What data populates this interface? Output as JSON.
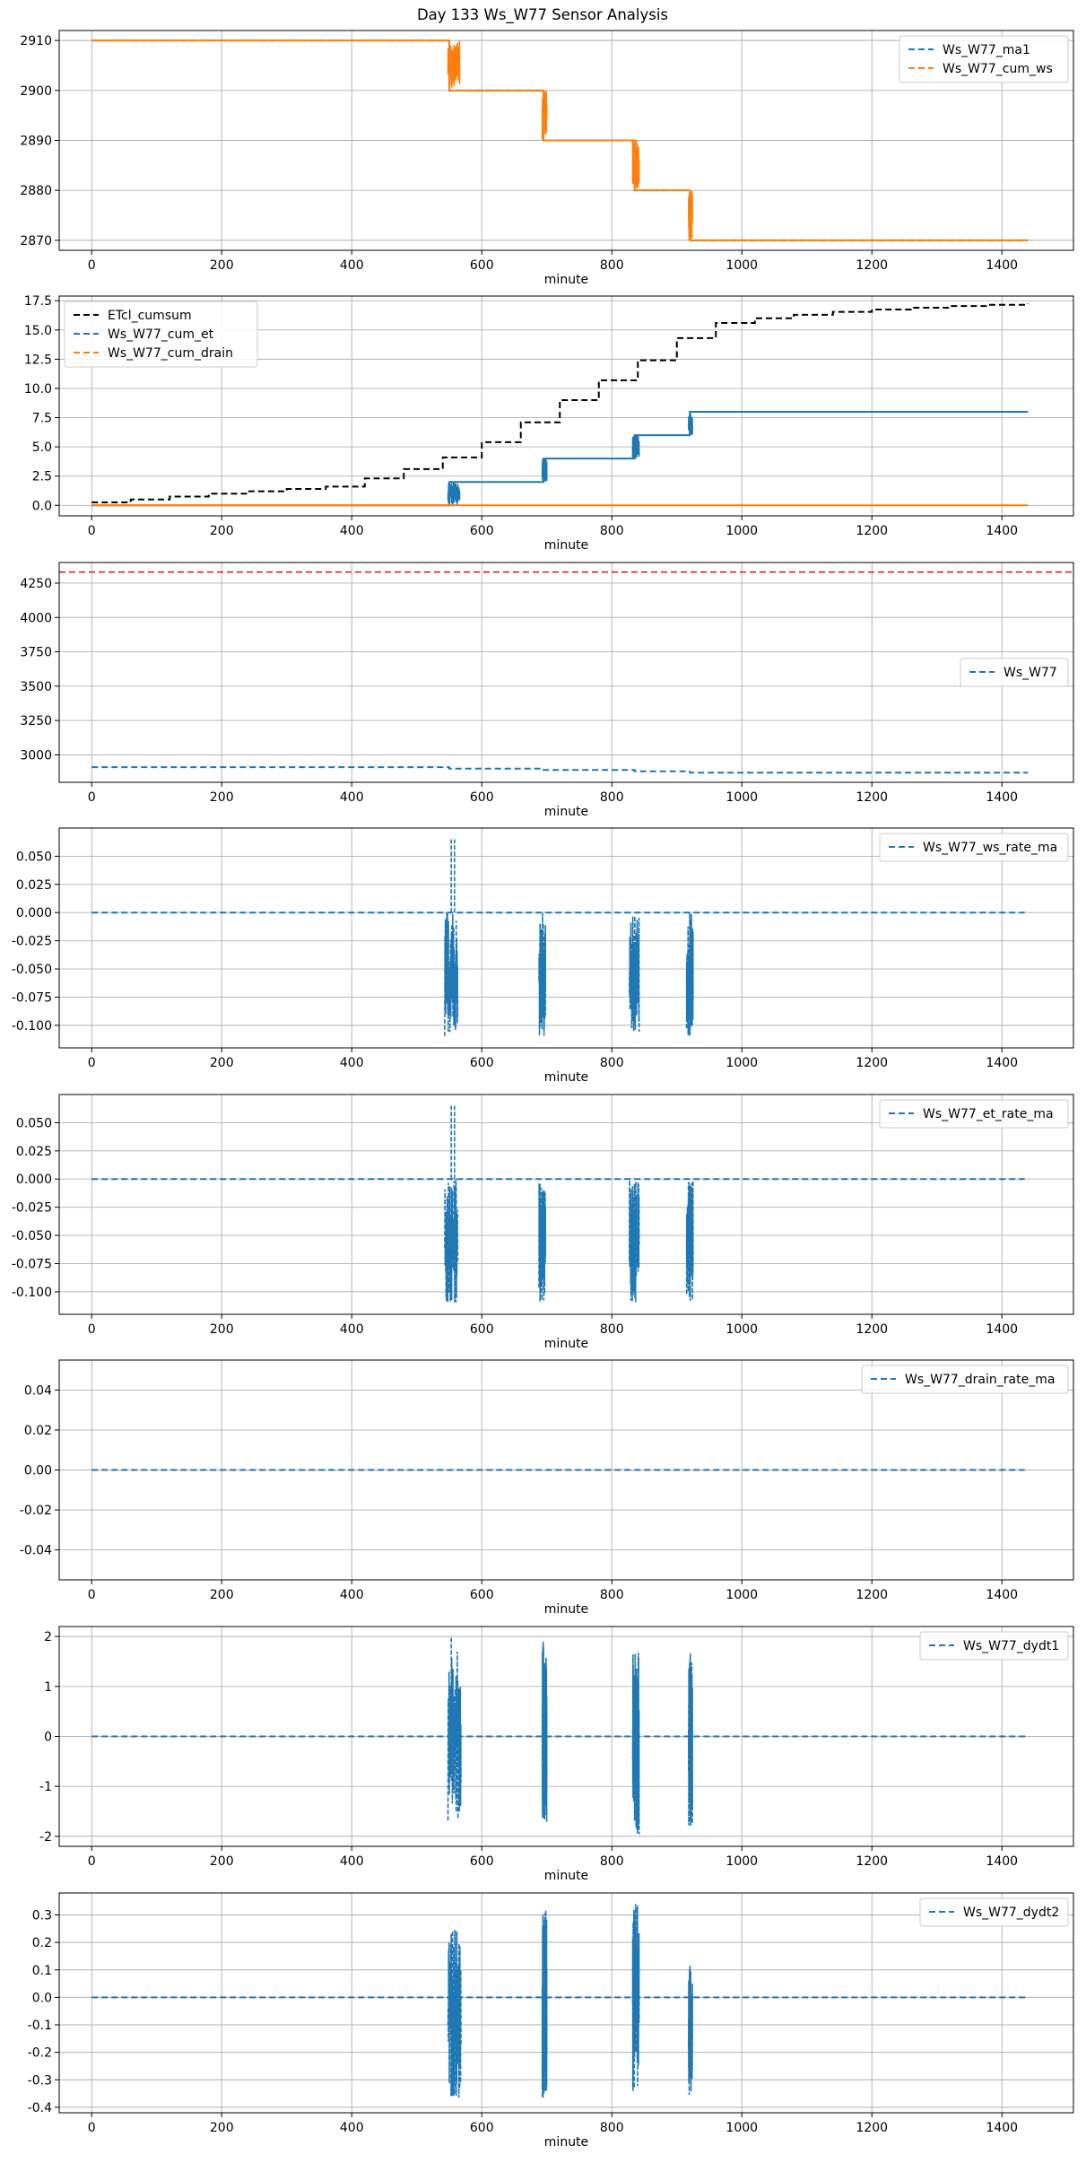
{
  "title": "Day 133 Ws_W77 Sensor Analysis",
  "colors": {
    "blue": "#1f77b4",
    "orange": "#ff7f0e",
    "black": "#000000",
    "red": "#d62728",
    "grid": "#b0b0b0"
  },
  "chart_data": [
    {
      "type": "line",
      "xlabel": "minute",
      "xlim": [
        -50,
        1510
      ],
      "ylim": [
        2868,
        2912
      ],
      "xticks": [
        0,
        200,
        400,
        600,
        800,
        1000,
        1200,
        1400
      ],
      "yticks": [
        2870,
        2880,
        2890,
        2900,
        2910
      ],
      "yticklabels": [
        "2870",
        "2880",
        "2890",
        "2900",
        "2910"
      ],
      "grid": true,
      "legend": "top-right",
      "series": [
        {
          "name": "Ws_W77_ma1",
          "color": "#1f77b4",
          "style": "dashed",
          "x": [
            0,
            550,
            550,
            695,
            695,
            835,
            835,
            920,
            920,
            1440
          ],
          "y": [
            2910,
            2910,
            2900,
            2900,
            2890,
            2890,
            2880,
            2880,
            2870,
            2870
          ]
        },
        {
          "name": "Ws_W77_cum_ws",
          "color": "#ff7f0e",
          "style": "solid",
          "x": [
            0,
            550,
            550,
            695,
            695,
            835,
            835,
            920,
            920,
            1440
          ],
          "y": [
            2910,
            2910,
            2900,
            2900,
            2890,
            2890,
            2880,
            2880,
            2870,
            2870
          ],
          "noise": [
            {
              "x0": 548,
              "x1": 566,
              "ymin": 2900,
              "ymax": 2910
            },
            {
              "x0": 693,
              "x1": 700,
              "ymin": 2890,
              "ymax": 2900
            },
            {
              "x0": 832,
              "x1": 842,
              "ymin": 2880,
              "ymax": 2890
            },
            {
              "x0": 918,
              "x1": 924,
              "ymin": 2870,
              "ymax": 2880
            }
          ]
        }
      ]
    },
    {
      "type": "line",
      "xlabel": "minute",
      "xlim": [
        -50,
        1510
      ],
      "ylim": [
        -0.9,
        17.9
      ],
      "xticks": [
        0,
        200,
        400,
        600,
        800,
        1000,
        1200,
        1400
      ],
      "yticks": [
        0,
        2.5,
        5,
        7.5,
        10,
        12.5,
        15,
        17.5
      ],
      "yticklabels": [
        "0.0",
        "2.5",
        "5.0",
        "7.5",
        "10.0",
        "12.5",
        "15.0",
        "17.5"
      ],
      "grid": true,
      "legend": "top-left",
      "series": [
        {
          "name": "ETcl_cumsum",
          "color": "#000000",
          "style": "dashed",
          "step": true,
          "x": [
            0,
            60,
            120,
            180,
            240,
            300,
            360,
            420,
            480,
            540,
            600,
            660,
            720,
            780,
            840,
            900,
            960,
            1020,
            1080,
            1140,
            1200,
            1260,
            1320,
            1380,
            1440
          ],
          "y": [
            0.25,
            0.5,
            0.75,
            1.0,
            1.2,
            1.4,
            1.6,
            2.3,
            3.1,
            4.1,
            5.4,
            7.1,
            9.0,
            10.7,
            12.4,
            14.3,
            15.6,
            16.0,
            16.3,
            16.55,
            16.75,
            16.9,
            17.05,
            17.15,
            17.25
          ]
        },
        {
          "name": "Ws_W77_cum_et",
          "color": "#1f77b4",
          "style": "solid",
          "x": [
            0,
            550,
            550,
            695,
            695,
            835,
            835,
            920,
            920,
            1440
          ],
          "y": [
            0,
            0,
            2,
            2,
            4,
            4,
            6,
            6,
            8,
            8
          ],
          "noise": [
            {
              "x0": 548,
              "x1": 566,
              "ymin": 0,
              "ymax": 2
            },
            {
              "x0": 693,
              "x1": 700,
              "ymin": 2,
              "ymax": 4
            },
            {
              "x0": 832,
              "x1": 842,
              "ymin": 4,
              "ymax": 6
            },
            {
              "x0": 918,
              "x1": 924,
              "ymin": 6,
              "ymax": 8
            }
          ]
        },
        {
          "name": "Ws_W77_cum_drain",
          "color": "#ff7f0e",
          "style": "solid",
          "x": [
            0,
            1440
          ],
          "y": [
            0,
            0
          ]
        }
      ]
    },
    {
      "type": "line",
      "xlabel": "minute",
      "xlim": [
        -50,
        1510
      ],
      "ylim": [
        2800,
        4400
      ],
      "xticks": [
        0,
        200,
        400,
        600,
        800,
        1000,
        1200,
        1400
      ],
      "yticks": [
        3000,
        3250,
        3500,
        3750,
        4000,
        4250
      ],
      "yticklabels": [
        "3000",
        "3250",
        "3500",
        "3750",
        "4000",
        "4250"
      ],
      "grid": true,
      "legend": "center-right",
      "hline": {
        "y": 4330,
        "color": "#d62728",
        "style": "dashed"
      },
      "series": [
        {
          "name": "Ws_W77",
          "color": "#1f77b4",
          "style": "dashed",
          "x": [
            0,
            550,
            550,
            695,
            695,
            835,
            835,
            920,
            920,
            1440
          ],
          "y": [
            2910,
            2910,
            2900,
            2900,
            2890,
            2890,
            2880,
            2880,
            2870,
            2870
          ]
        }
      ]
    },
    {
      "type": "line",
      "xlabel": "minute",
      "xlim": [
        -50,
        1510
      ],
      "ylim": [
        -0.12,
        0.075
      ],
      "xticks": [
        0,
        200,
        400,
        600,
        800,
        1000,
        1200,
        1400
      ],
      "yticks": [
        -0.1,
        -0.075,
        -0.05,
        -0.025,
        0,
        0.025,
        0.05
      ],
      "yticklabels": [
        "-0.100",
        "-0.075",
        "-0.050",
        "-0.025",
        "0.000",
        "0.025",
        "0.050"
      ],
      "grid": true,
      "legend": "top-right",
      "series": [
        {
          "name": "Ws_W77_ws_rate_ma",
          "color": "#1f77b4",
          "style": "dashed",
          "x": [
            0,
            1435
          ],
          "y": [
            0,
            0
          ],
          "noise": [
            {
              "x0": 543,
              "x1": 563,
              "ymin": -0.11,
              "ymax": 0,
              "spikes": [
                {
                  "x": 553,
                  "y": 0.065
                },
                {
                  "x": 558,
                  "y": 0.065
                }
              ]
            },
            {
              "x0": 688,
              "x1": 698,
              "ymin": -0.11,
              "ymax": 0
            },
            {
              "x0": 827,
              "x1": 842,
              "ymin": -0.11,
              "ymax": 0
            },
            {
              "x0": 915,
              "x1": 925,
              "ymin": -0.11,
              "ymax": 0
            }
          ]
        }
      ]
    },
    {
      "type": "line",
      "xlabel": "minute",
      "xlim": [
        -50,
        1510
      ],
      "ylim": [
        -0.12,
        0.075
      ],
      "xticks": [
        0,
        200,
        400,
        600,
        800,
        1000,
        1200,
        1400
      ],
      "yticks": [
        -0.1,
        -0.075,
        -0.05,
        -0.025,
        0,
        0.025,
        0.05
      ],
      "yticklabels": [
        "-0.100",
        "-0.075",
        "-0.050",
        "-0.025",
        "0.000",
        "0.025",
        "0.050"
      ],
      "grid": true,
      "legend": "top-right",
      "series": [
        {
          "name": "Ws_W77_et_rate_ma",
          "color": "#1f77b4",
          "style": "dashed",
          "x": [
            0,
            1435
          ],
          "y": [
            0,
            0
          ],
          "noise": [
            {
              "x0": 543,
              "x1": 563,
              "ymin": -0.11,
              "ymax": 0,
              "spikes": [
                {
                  "x": 553,
                  "y": 0.065
                },
                {
                  "x": 558,
                  "y": 0.065
                }
              ]
            },
            {
              "x0": 688,
              "x1": 698,
              "ymin": -0.11,
              "ymax": 0
            },
            {
              "x0": 827,
              "x1": 842,
              "ymin": -0.11,
              "ymax": 0
            },
            {
              "x0": 915,
              "x1": 925,
              "ymin": -0.11,
              "ymax": 0
            }
          ]
        }
      ]
    },
    {
      "type": "line",
      "xlabel": "minute",
      "xlim": [
        -50,
        1510
      ],
      "ylim": [
        -0.055,
        0.055
      ],
      "xticks": [
        0,
        200,
        400,
        600,
        800,
        1000,
        1200,
        1400
      ],
      "yticks": [
        -0.04,
        -0.02,
        0,
        0.02,
        0.04
      ],
      "yticklabels": [
        "-0.04",
        "-0.02",
        "0.00",
        "0.02",
        "0.04"
      ],
      "grid": true,
      "legend": "top-right",
      "series": [
        {
          "name": "Ws_W77_drain_rate_ma",
          "color": "#1f77b4",
          "style": "dashed",
          "x": [
            0,
            1435
          ],
          "y": [
            0,
            0
          ]
        }
      ]
    },
    {
      "type": "line",
      "xlabel": "minute",
      "xlim": [
        -50,
        1510
      ],
      "ylim": [
        -2.2,
        2.2
      ],
      "xticks": [
        0,
        200,
        400,
        600,
        800,
        1000,
        1200,
        1400
      ],
      "yticks": [
        -2,
        -1,
        0,
        1,
        2
      ],
      "yticklabels": [
        "-2",
        "-1",
        "0",
        "1",
        "2"
      ],
      "grid": true,
      "legend": "top-right",
      "series": [
        {
          "name": "Ws_W77_dydt1",
          "color": "#1f77b4",
          "style": "dashed",
          "x": [
            0,
            1440
          ],
          "y": [
            0,
            0
          ],
          "noise": [
            {
              "x0": 548,
              "x1": 568,
              "ymin": -1.7,
              "ymax": 1.7,
              "spikes": [
                {
                  "x": 553,
                  "y": 2.0
                }
              ]
            },
            {
              "x0": 693,
              "x1": 700,
              "ymin": -1.8,
              "ymax": 1.9
            },
            {
              "x0": 832,
              "x1": 842,
              "ymin": -2.0,
              "ymax": 1.8
            },
            {
              "x0": 918,
              "x1": 924,
              "ymin": -1.8,
              "ymax": 1.8
            }
          ]
        }
      ]
    },
    {
      "type": "line",
      "xlabel": "minute",
      "xlim": [
        -50,
        1510
      ],
      "ylim": [
        -0.42,
        0.38
      ],
      "xticks": [
        0,
        200,
        400,
        600,
        800,
        1000,
        1200,
        1400
      ],
      "yticks": [
        -0.4,
        -0.3,
        -0.2,
        -0.1,
        0,
        0.1,
        0.2,
        0.3
      ],
      "yticklabels": [
        "-0.4",
        "-0.3",
        "-0.2",
        "-0.1",
        "0.0",
        "0.1",
        "0.2",
        "0.3"
      ],
      "grid": true,
      "legend": "top-right",
      "series": [
        {
          "name": "Ws_W77_dydt2",
          "color": "#1f77b4",
          "style": "dashed",
          "x": [
            0,
            1440
          ],
          "y": [
            0,
            0
          ],
          "noise": [
            {
              "x0": 548,
              "x1": 568,
              "ymin": -0.37,
              "ymax": 0.25
            },
            {
              "x0": 693,
              "x1": 700,
              "ymin": -0.38,
              "ymax": 0.35
            },
            {
              "x0": 832,
              "x1": 842,
              "ymin": -0.37,
              "ymax": 0.34
            },
            {
              "x0": 918,
              "x1": 924,
              "ymin": -0.36,
              "ymax": 0.12
            }
          ]
        }
      ]
    }
  ]
}
